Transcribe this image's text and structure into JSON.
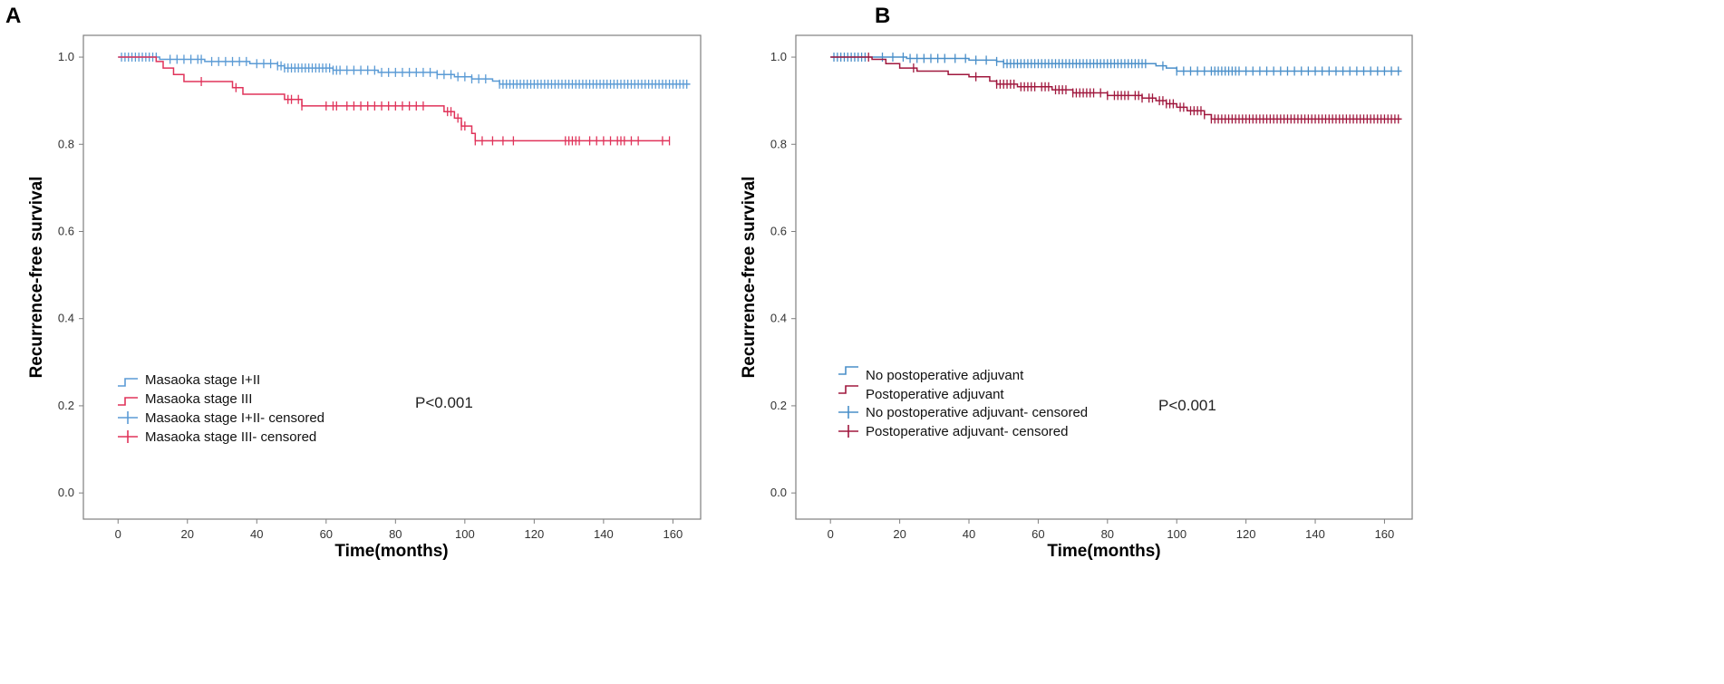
{
  "panels": [
    {
      "letter": "A",
      "p_value": "P<0.001",
      "chart_data": {
        "type": "line",
        "subtype": "kaplan-meier",
        "xlabel": "Time(months)",
        "ylabel": "Recurrence-free survival",
        "xlim": [
          -10,
          168
        ],
        "ylim": [
          -0.06,
          1.05
        ],
        "xticks": [
          0,
          20,
          40,
          60,
          80,
          100,
          120,
          140,
          160
        ],
        "yticks": [
          0.0,
          0.2,
          0.4,
          0.6,
          0.8,
          1.0
        ],
        "legend_position": "lower-left",
        "series": [
          {
            "name": "Masaoka stage I+II",
            "censored_name": "Masaoka stage I+II- censored",
            "color": "#5b9bd5",
            "steps": [
              [
                0,
                1.0
              ],
              [
                12,
                0.995
              ],
              [
                25,
                0.99
              ],
              [
                38,
                0.985
              ],
              [
                46,
                0.98
              ],
              [
                48,
                0.975
              ],
              [
                62,
                0.97
              ],
              [
                75,
                0.965
              ],
              [
                92,
                0.96
              ],
              [
                97,
                0.955
              ],
              [
                102,
                0.95
              ],
              [
                108,
                0.945
              ],
              [
                110,
                0.938
              ],
              [
                165,
                0.938
              ]
            ],
            "censored": [
              1,
              2,
              3,
              4,
              5,
              6,
              7,
              8,
              9,
              10,
              11,
              15,
              17,
              19,
              21,
              23,
              24,
              27,
              29,
              31,
              33,
              35,
              37,
              40,
              42,
              44,
              46,
              47,
              48,
              49,
              50,
              51,
              52,
              53,
              54,
              55,
              56,
              57,
              58,
              59,
              60,
              61,
              62,
              63,
              64,
              66,
              68,
              70,
              72,
              74,
              76,
              78,
              80,
              82,
              84,
              86,
              88,
              90,
              92,
              94,
              96,
              98,
              100,
              102,
              104,
              106,
              110,
              111,
              112,
              113,
              114,
              115,
              116,
              117,
              118,
              119,
              120,
              121,
              122,
              123,
              124,
              125,
              126,
              127,
              128,
              129,
              130,
              131,
              132,
              133,
              134,
              135,
              136,
              137,
              138,
              139,
              140,
              141,
              142,
              143,
              144,
              145,
              146,
              147,
              148,
              149,
              150,
              151,
              152,
              153,
              154,
              155,
              156,
              157,
              158,
              159,
              160,
              161,
              162,
              163,
              164
            ]
          },
          {
            "name": "Masaoka stage III",
            "censored_name": "Masaoka stage III- censored",
            "color": "#e0335a",
            "steps": [
              [
                0,
                1.0
              ],
              [
                11,
                0.99
              ],
              [
                13,
                0.975
              ],
              [
                16,
                0.96
              ],
              [
                19,
                0.944
              ],
              [
                33,
                0.93
              ],
              [
                36,
                0.915
              ],
              [
                48,
                0.903
              ],
              [
                53,
                0.888
              ],
              [
                94,
                0.875
              ],
              [
                97,
                0.86
              ],
              [
                99,
                0.842
              ],
              [
                102,
                0.825
              ],
              [
                103,
                0.808
              ],
              [
                159,
                0.808
              ]
            ],
            "censored": [
              24,
              34,
              49,
              50,
              52,
              53,
              60,
              62,
              63,
              66,
              68,
              70,
              72,
              74,
              76,
              78,
              80,
              82,
              84,
              86,
              88,
              95,
              96,
              98,
              99,
              100,
              103,
              105,
              108,
              111,
              114,
              129,
              130,
              131,
              132,
              133,
              136,
              138,
              140,
              142,
              144,
              145,
              146,
              148,
              150,
              157,
              159
            ]
          }
        ]
      }
    },
    {
      "letter": "B",
      "p_value": "P<0.001",
      "chart_data": {
        "type": "line",
        "subtype": "kaplan-meier",
        "xlabel": "Time(months)",
        "ylabel": "Recurrence-free survival",
        "xlim": [
          -10,
          168
        ],
        "ylim": [
          -0.06,
          1.05
        ],
        "xticks": [
          0,
          20,
          40,
          60,
          80,
          100,
          120,
          140,
          160
        ],
        "yticks": [
          0.0,
          0.2,
          0.4,
          0.6,
          0.8,
          1.0
        ],
        "legend_position": "lower-left",
        "series": [
          {
            "name": "No postoperative adjuvant",
            "censored_name": "No postoperative adjuvant- censored",
            "color": "#4a8fc9",
            "steps": [
              [
                0,
                1.0
              ],
              [
                22,
                0.997
              ],
              [
                40,
                0.993
              ],
              [
                48,
                0.99
              ],
              [
                50,
                0.985
              ],
              [
                94,
                0.98
              ],
              [
                97,
                0.975
              ],
              [
                100,
                0.968
              ],
              [
                165,
                0.968
              ]
            ],
            "censored": [
              1,
              2,
              3,
              4,
              5,
              6,
              7,
              8,
              9,
              10,
              15,
              18,
              21,
              23,
              25,
              27,
              29,
              31,
              33,
              36,
              39,
              42,
              45,
              48,
              50,
              51,
              52,
              53,
              54,
              55,
              56,
              57,
              58,
              59,
              60,
              61,
              62,
              63,
              64,
              65,
              66,
              67,
              68,
              69,
              70,
              71,
              72,
              73,
              74,
              75,
              76,
              77,
              78,
              79,
              80,
              81,
              82,
              83,
              84,
              85,
              86,
              87,
              88,
              89,
              90,
              91,
              96,
              100,
              102,
              104,
              106,
              108,
              110,
              111,
              112,
              113,
              114,
              115,
              116,
              117,
              118,
              120,
              122,
              124,
              126,
              128,
              130,
              132,
              134,
              136,
              138,
              140,
              142,
              144,
              146,
              148,
              150,
              152,
              154,
              156,
              158,
              160,
              162,
              164
            ]
          },
          {
            "name": "Postoperative adjuvant",
            "censored_name": "Postoperative adjuvant- censored",
            "color": "#a0183e",
            "steps": [
              [
                0,
                1.0
              ],
              [
                12,
                0.995
              ],
              [
                16,
                0.985
              ],
              [
                20,
                0.975
              ],
              [
                25,
                0.968
              ],
              [
                34,
                0.96
              ],
              [
                40,
                0.955
              ],
              [
                46,
                0.945
              ],
              [
                48,
                0.938
              ],
              [
                54,
                0.932
              ],
              [
                64,
                0.925
              ],
              [
                70,
                0.918
              ],
              [
                80,
                0.912
              ],
              [
                90,
                0.906
              ],
              [
                94,
                0.9
              ],
              [
                97,
                0.893
              ],
              [
                100,
                0.885
              ],
              [
                103,
                0.877
              ],
              [
                108,
                0.868
              ],
              [
                110,
                0.858
              ],
              [
                165,
                0.858
              ]
            ],
            "censored": [
              11,
              24,
              42,
              48,
              49,
              50,
              51,
              52,
              53,
              55,
              56,
              57,
              58,
              59,
              61,
              62,
              63,
              65,
              66,
              67,
              68,
              70,
              71,
              72,
              73,
              74,
              75,
              76,
              78,
              80,
              82,
              83,
              84,
              85,
              86,
              88,
              89,
              90,
              92,
              93,
              95,
              96,
              97,
              98,
              99,
              101,
              102,
              104,
              105,
              106,
              107,
              108,
              110,
              111,
              112,
              113,
              114,
              115,
              116,
              117,
              118,
              119,
              120,
              121,
              122,
              123,
              124,
              125,
              126,
              127,
              128,
              129,
              130,
              131,
              132,
              133,
              134,
              135,
              136,
              137,
              138,
              139,
              140,
              141,
              142,
              143,
              144,
              145,
              146,
              147,
              148,
              149,
              150,
              151,
              152,
              153,
              154,
              155,
              156,
              157,
              158,
              159,
              160,
              161,
              162,
              163,
              164
            ]
          }
        ]
      }
    }
  ]
}
